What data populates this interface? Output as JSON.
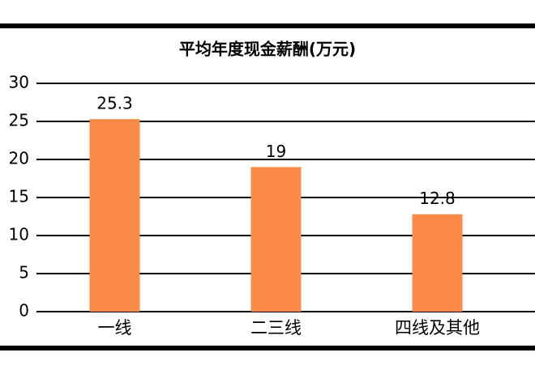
{
  "chart_data": {
    "type": "bar",
    "title": "平均年度现金薪酬(万元)",
    "categories": [
      "一线",
      "二三线",
      "四线及其他"
    ],
    "values": [
      25.3,
      19,
      12.8
    ],
    "color": "#fa8a45",
    "ylim": [
      0,
      30
    ],
    "yticks": [
      0,
      5,
      10,
      15,
      20,
      25,
      30
    ],
    "grid": true
  }
}
